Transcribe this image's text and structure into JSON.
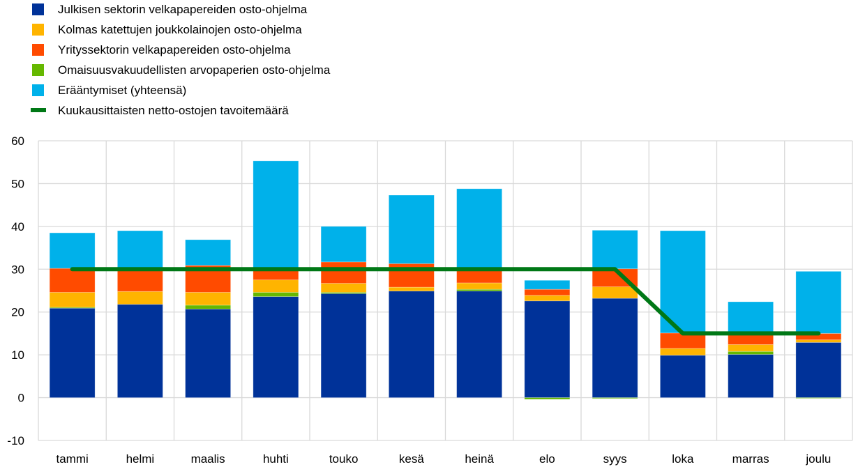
{
  "chart_data": {
    "type": "bar",
    "stacked": true,
    "categories": [
      "tammi",
      "helmi",
      "maalis",
      "huhti",
      "touko",
      "kesä",
      "heinä",
      "elo",
      "syys",
      "loka",
      "marras",
      "joulu"
    ],
    "series": [
      {
        "name": "Julkisen sektorin velkapapereiden osto-ohjelma",
        "color": "#003299",
        "values": [
          20.9,
          21.8,
          20.7,
          23.6,
          24.3,
          24.9,
          24.9,
          22.6,
          23.2,
          9.9,
          10.1,
          12.9
        ]
      },
      {
        "name": "Omaisuusvakuudellisten arvopaperien osto-ohjelma",
        "color": "#65b800",
        "values": [
          0.2,
          0,
          0.9,
          1.0,
          0.3,
          0,
          0.4,
          -0.4,
          -0.2,
          0,
          0.7,
          -0.1
        ]
      },
      {
        "name": "Kolmas katettujen joukkolainojen osto-ohjelma",
        "color": "#ffb400",
        "values": [
          3.5,
          3.0,
          3.0,
          2.9,
          2.1,
          0.9,
          1.5,
          1.3,
          2.7,
          1.6,
          1.6,
          0.6
        ]
      },
      {
        "name": "Yrityssektorin velkapapereiden osto-ohjelma",
        "color": "#ff4b00",
        "values": [
          5.6,
          5.3,
          6.3,
          2.5,
          5.0,
          5.5,
          3.2,
          1.4,
          4.2,
          3.6,
          2.6,
          1.5
        ]
      },
      {
        "name": "Erääntymiset (yhteensä)",
        "color": "#00b1ea",
        "values": [
          8.3,
          8.9,
          6.0,
          25.3,
          8.3,
          16.0,
          18.8,
          2.1,
          9.0,
          23.9,
          7.4,
          14.5
        ]
      }
    ],
    "line": {
      "name": "Kuukausittaisten netto-ostojen tavoitemäärä",
      "color": "#007816",
      "values": [
        30,
        30,
        30,
        30,
        30,
        30,
        30,
        30,
        30,
        15,
        15,
        15
      ]
    },
    "legend_order": [
      0,
      2,
      3,
      1,
      4
    ],
    "ylim": [
      -10,
      60
    ],
    "yticks": [
      "-10",
      "0",
      "10",
      "20",
      "30",
      "40",
      "50",
      "60"
    ],
    "grid": true,
    "legend_placement": "top-left",
    "title": "",
    "xlabel": "",
    "ylabel": ""
  }
}
